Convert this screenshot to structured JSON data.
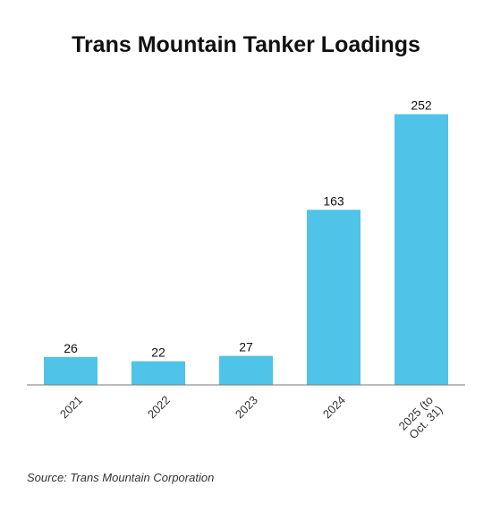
{
  "chart_data": {
    "type": "bar",
    "title": "Trans Mountain Tanker Loadings",
    "xlabel": "",
    "ylabel": "",
    "categories": [
      "2021",
      "2022",
      "2023",
      "2024",
      "2025 (to Oct. 31)"
    ],
    "category_lines": [
      [
        "2021"
      ],
      [
        "2022"
      ],
      [
        "2023"
      ],
      [
        "2024"
      ],
      [
        "2025 (to",
        "Oct. 31)"
      ]
    ],
    "values": [
      26,
      22,
      27,
      163,
      252
    ],
    "ylim": [
      0,
      275
    ],
    "grid": false,
    "legend": "none",
    "bar_color": "#4FC3E8"
  },
  "source": "Source: Trans Mountain Corporation"
}
